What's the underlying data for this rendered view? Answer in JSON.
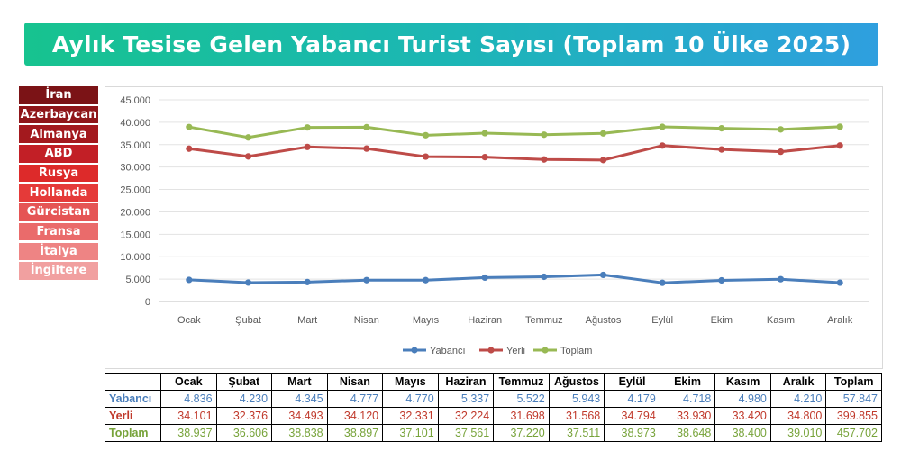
{
  "header": {
    "title": "Aylık Tesise Gelen Yabancı Turist Sayısı (Toplam 10 Ülke 2025)"
  },
  "countries": [
    {
      "label": "İran",
      "color": "#7b1316"
    },
    {
      "label": "Azerbaycan",
      "color": "#8f161a"
    },
    {
      "label": "Almanya",
      "color": "#a3191e"
    },
    {
      "label": "ABD",
      "color": "#c21f26"
    },
    {
      "label": "Rusya",
      "color": "#dd2a2a"
    },
    {
      "label": "Hollanda",
      "color": "#e53a39"
    },
    {
      "label": "Gürcistan",
      "color": "#e55555"
    },
    {
      "label": "Fransa",
      "color": "#ea6b6b"
    },
    {
      "label": "İtalya",
      "color": "#ee8484"
    },
    {
      "label": "İngiltere",
      "color": "#f1a0a0"
    }
  ],
  "chart_data": {
    "type": "line",
    "categories": [
      "Ocak",
      "Şubat",
      "Mart",
      "Nisan",
      "Mayıs",
      "Haziran",
      "Temmuz",
      "Ağustos",
      "Eylül",
      "Ekim",
      "Kasım",
      "Aralık"
    ],
    "series": [
      {
        "name": "Yabancı",
        "color": "#4a7ebb",
        "values": [
          4836,
          4230,
          4345,
          4777,
          4770,
          5337,
          5522,
          5943,
          4179,
          4718,
          4980,
          4210
        ]
      },
      {
        "name": "Yerli",
        "color": "#be4b48",
        "values": [
          34101,
          32376,
          34493,
          34120,
          32331,
          32224,
          31698,
          31568,
          34794,
          33930,
          33420,
          34800
        ]
      },
      {
        "name": "Toplam",
        "color": "#98b954",
        "values": [
          38937,
          36606,
          38838,
          38897,
          37101,
          37561,
          37220,
          37511,
          38973,
          38648,
          38400,
          39010
        ]
      }
    ],
    "ylim": [
      0,
      45000
    ],
    "yticks": [
      0,
      5000,
      10000,
      15000,
      20000,
      25000,
      30000,
      35000,
      40000,
      45000
    ],
    "ytick_labels": [
      "0",
      "5.000",
      "10.000",
      "15.000",
      "20.000",
      "25.000",
      "30.000",
      "35.000",
      "40.000",
      "45.000"
    ],
    "grid": true,
    "legend": "bottom"
  },
  "table": {
    "headers": [
      "",
      "Ocak",
      "Şubat",
      "Mart",
      "Nisan",
      "Mayıs",
      "Haziran",
      "Temmuz",
      "Ağustos",
      "Eylül",
      "Ekim",
      "Kasım",
      "Aralık",
      "Toplam"
    ],
    "rows": [
      {
        "label": "Yabancı",
        "color": "#4a7ebb",
        "cells": [
          "4.836",
          "4.230",
          "4.345",
          "4.777",
          "4.770",
          "5.337",
          "5.522",
          "5.943",
          "4.179",
          "4.718",
          "4.980",
          "4.210",
          "57.847"
        ]
      },
      {
        "label": "Yerli",
        "color": "#c0392b",
        "cells": [
          "34.101",
          "32.376",
          "34.493",
          "34.120",
          "32.331",
          "32.224",
          "31.698",
          "31.568",
          "34.794",
          "33.930",
          "33.420",
          "34.800",
          "399.855"
        ]
      },
      {
        "label": "Toplam",
        "color": "#77a33a",
        "cells": [
          "38.937",
          "36.606",
          "38.838",
          "38.897",
          "37.101",
          "37.561",
          "37.220",
          "37.511",
          "38.973",
          "38.648",
          "38.400",
          "39.010",
          "457.702"
        ]
      }
    ]
  }
}
